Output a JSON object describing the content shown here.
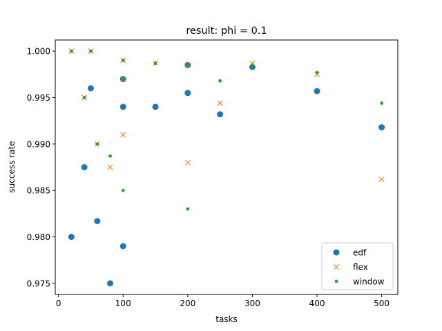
{
  "chart_data": {
    "type": "scatter",
    "title": "result: phi = 0.1",
    "xlabel": "tasks",
    "ylabel": "success rate",
    "xlim": [
      -5,
      525
    ],
    "ylim": [
      0.9738,
      1.0012
    ],
    "xticks": [
      0,
      100,
      200,
      300,
      400,
      500
    ],
    "xtick_labels": [
      "0",
      "100",
      "200",
      "300",
      "400",
      "500"
    ],
    "yticks": [
      0.975,
      0.98,
      0.985,
      0.99,
      0.995,
      1.0
    ],
    "ytick_labels": [
      "0.975",
      "0.980",
      "0.985",
      "0.990",
      "0.995",
      "1.000"
    ],
    "grid": false,
    "legend_position": "lower-right",
    "series": [
      {
        "name": "edf",
        "marker": "circle",
        "color": "#1f77b4",
        "points": [
          [
            20,
            0.98
          ],
          [
            40,
            0.9875
          ],
          [
            50,
            0.996
          ],
          [
            60,
            0.9817
          ],
          [
            80,
            0.975
          ],
          [
            100,
            0.997
          ],
          [
            100,
            0.994
          ],
          [
            100,
            0.979
          ],
          [
            150,
            0.994
          ],
          [
            200,
            0.9985
          ],
          [
            200,
            0.9955
          ],
          [
            250,
            0.9932
          ],
          [
            300,
            0.9983
          ],
          [
            400,
            0.9957
          ],
          [
            500,
            0.9918
          ]
        ]
      },
      {
        "name": "flex",
        "marker": "x",
        "color": "#ff7f0e",
        "points": [
          [
            20,
            1.0
          ],
          [
            40,
            0.995
          ],
          [
            50,
            1.0
          ],
          [
            60,
            0.99
          ],
          [
            80,
            0.9875
          ],
          [
            100,
            0.999
          ],
          [
            100,
            0.997
          ],
          [
            100,
            0.991
          ],
          [
            150,
            0.9987
          ],
          [
            200,
            0.9985
          ],
          [
            200,
            0.988
          ],
          [
            250,
            0.9944
          ],
          [
            300,
            0.9987
          ],
          [
            400,
            0.9975
          ],
          [
            500,
            0.9862
          ]
        ]
      },
      {
        "name": "window",
        "marker": "dot",
        "color": "#2ca02c",
        "points": [
          [
            20,
            1.0
          ],
          [
            40,
            0.995
          ],
          [
            50,
            1.0
          ],
          [
            60,
            0.99
          ],
          [
            80,
            0.9887
          ],
          [
            100,
            0.999
          ],
          [
            100,
            0.997
          ],
          [
            100,
            0.985
          ],
          [
            150,
            0.9987
          ],
          [
            200,
            0.9985
          ],
          [
            200,
            0.983
          ],
          [
            250,
            0.9968
          ],
          [
            300,
            0.9985
          ],
          [
            400,
            0.9977
          ],
          [
            500,
            0.9944
          ]
        ]
      }
    ]
  }
}
